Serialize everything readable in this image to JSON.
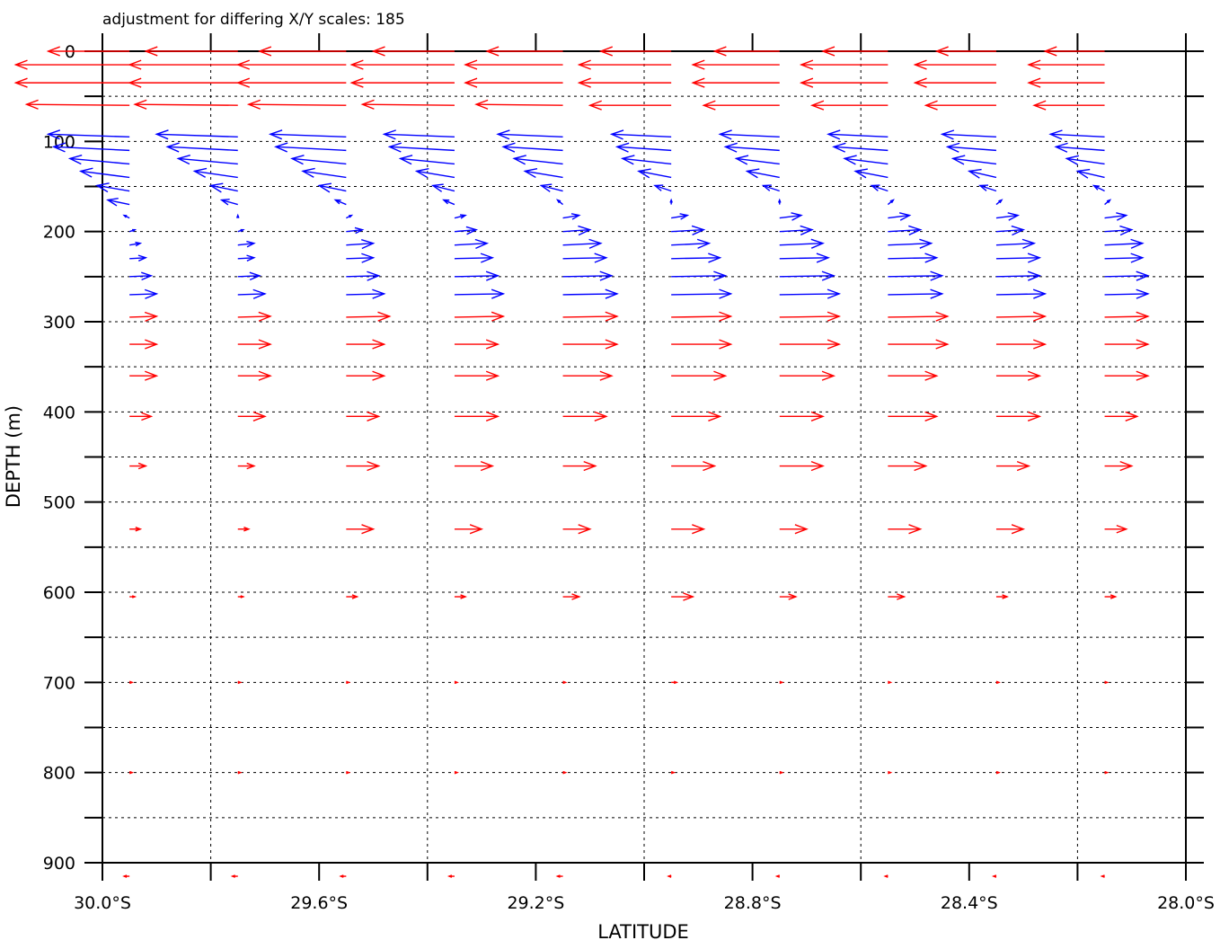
{
  "chart_data": {
    "type": "vector",
    "title": "adjustment for differing X/Y scales: 185",
    "xlabel": "LATITUDE",
    "ylabel": "DEPTH (m)",
    "xlim": [
      -30.0,
      -28.0
    ],
    "ylim": [
      900,
      0
    ],
    "x_ticks": [
      {
        "value": -30.0,
        "label": "30.0°S"
      },
      {
        "value": -29.6,
        "label": "29.6°S"
      },
      {
        "value": -29.2,
        "label": "29.2°S"
      },
      {
        "value": -28.8,
        "label": "28.8°S"
      },
      {
        "value": -28.4,
        "label": "28.4°S"
      },
      {
        "value": -28.0,
        "label": "28.0°S"
      }
    ],
    "x_minor_ticks": [
      -29.8,
      -29.4,
      -29.0,
      -28.6,
      -28.2
    ],
    "y_ticks": [
      {
        "value": 0,
        "label": "0"
      },
      {
        "value": 100,
        "label": "100"
      },
      {
        "value": 200,
        "label": "200"
      },
      {
        "value": 300,
        "label": "300"
      },
      {
        "value": 400,
        "label": "400"
      },
      {
        "value": 500,
        "label": "500"
      },
      {
        "value": 600,
        "label": "600"
      },
      {
        "value": 700,
        "label": "700"
      },
      {
        "value": 800,
        "label": "800"
      },
      {
        "value": 900,
        "label": "900"
      }
    ],
    "y_minor_ticks": [
      50,
      150,
      250,
      350,
      450,
      550,
      650,
      750,
      850
    ],
    "grid": true,
    "origin_latitudes": [
      -29.95,
      -29.75,
      -29.55,
      -29.35,
      -29.15,
      -28.95,
      -28.75,
      -28.55,
      -28.35,
      -28.15
    ],
    "depths": [
      0,
      15,
      35,
      60,
      95,
      110,
      125,
      140,
      155,
      170,
      185,
      200,
      215,
      230,
      250,
      270,
      295,
      325,
      360,
      405,
      460,
      530,
      605,
      700,
      800,
      915
    ],
    "colors": {
      "surface_and_deep": "#ff0000",
      "intermediate": "#0000ff"
    },
    "u_vectors_deg_lat": [
      [
        -0.15,
        -0.17,
        -0.16,
        -0.15,
        -0.14,
        -0.13,
        -0.12,
        -0.12,
        -0.11,
        -0.11
      ],
      [
        -0.21,
        -0.2,
        -0.2,
        -0.19,
        -0.18,
        -0.17,
        -0.16,
        -0.16,
        -0.15,
        -0.14
      ],
      [
        -0.21,
        -0.2,
        -0.2,
        -0.19,
        -0.18,
        -0.17,
        -0.16,
        -0.16,
        -0.15,
        -0.14
      ],
      [
        -0.19,
        -0.19,
        -0.18,
        -0.17,
        -0.16,
        -0.15,
        -0.14,
        -0.14,
        -0.13,
        -0.13
      ],
      [
        -0.15,
        -0.15,
        -0.14,
        -0.13,
        -0.12,
        -0.11,
        -0.11,
        -0.11,
        -0.1,
        -0.1
      ],
      [
        -0.14,
        -0.13,
        -0.13,
        -0.12,
        -0.11,
        -0.1,
        -0.1,
        -0.1,
        -0.09,
        -0.09
      ],
      [
        -0.11,
        -0.11,
        -0.1,
        -0.1,
        -0.09,
        -0.09,
        -0.08,
        -0.08,
        -0.08,
        -0.07
      ],
      [
        -0.09,
        -0.08,
        -0.08,
        -0.07,
        -0.07,
        -0.06,
        -0.06,
        -0.06,
        -0.05,
        -0.05
      ],
      [
        -0.06,
        -0.05,
        -0.05,
        -0.04,
        -0.04,
        -0.03,
        -0.03,
        -0.03,
        -0.03,
        -0.02
      ],
      [
        -0.04,
        -0.03,
        -0.02,
        -0.02,
        -0.01,
        0.0,
        0.0,
        0.01,
        0.01,
        0.01
      ],
      [
        -0.01,
        0.0,
        0.01,
        0.02,
        0.03,
        0.03,
        0.04,
        0.04,
        0.04,
        0.04
      ],
      [
        0.01,
        0.01,
        0.03,
        0.04,
        0.05,
        0.06,
        0.06,
        0.06,
        0.05,
        0.05
      ],
      [
        0.02,
        0.03,
        0.05,
        0.06,
        0.07,
        0.07,
        0.08,
        0.08,
        0.07,
        0.07
      ],
      [
        0.03,
        0.03,
        0.05,
        0.07,
        0.08,
        0.09,
        0.09,
        0.09,
        0.08,
        0.07
      ],
      [
        0.04,
        0.04,
        0.06,
        0.08,
        0.09,
        0.1,
        0.1,
        0.1,
        0.08,
        0.08
      ],
      [
        0.05,
        0.05,
        0.07,
        0.09,
        0.1,
        0.11,
        0.11,
        0.1,
        0.09,
        0.08
      ],
      [
        0.05,
        0.06,
        0.08,
        0.09,
        0.1,
        0.11,
        0.11,
        0.11,
        0.09,
        0.08
      ],
      [
        0.05,
        0.06,
        0.07,
        0.08,
        0.1,
        0.11,
        0.11,
        0.11,
        0.09,
        0.08
      ],
      [
        0.05,
        0.06,
        0.07,
        0.08,
        0.09,
        0.1,
        0.1,
        0.09,
        0.08,
        0.08
      ],
      [
        0.04,
        0.05,
        0.06,
        0.08,
        0.08,
        0.09,
        0.08,
        0.09,
        0.08,
        0.06
      ],
      [
        0.03,
        0.03,
        0.06,
        0.07,
        0.06,
        0.08,
        0.08,
        0.07,
        0.06,
        0.05
      ],
      [
        0.02,
        0.02,
        0.05,
        0.05,
        0.05,
        0.06,
        0.05,
        0.06,
        0.05,
        0.04
      ],
      [
        0.01,
        0.01,
        0.02,
        0.02,
        0.03,
        0.04,
        0.03,
        0.03,
        0.02,
        0.02
      ],
      [
        0.005,
        0.005,
        0.005,
        0.005,
        0.005,
        0.01,
        0.005,
        0.005,
        0.005,
        0.005
      ],
      [
        0.005,
        0.005,
        0.005,
        0.005,
        0.005,
        0.005,
        0.005,
        0.005,
        0.005,
        0.005
      ],
      [
        -0.01,
        -0.01,
        -0.01,
        -0.01,
        -0.01,
        -0.005,
        -0.005,
        -0.005,
        -0.005,
        -0.005
      ]
    ],
    "w_vectors_m": [
      [
        0,
        0,
        0,
        0,
        0,
        0,
        0,
        0,
        0,
        0
      ],
      [
        0,
        0,
        0,
        0,
        0,
        0,
        0,
        0,
        0,
        0
      ],
      [
        0,
        0,
        0,
        0,
        0,
        0,
        0,
        0,
        0,
        0
      ],
      [
        -1,
        -1,
        -1,
        -1,
        -1,
        0,
        0,
        0,
        0,
        0
      ],
      [
        -3,
        -3,
        -3,
        -3,
        -3,
        -3,
        -3,
        -3,
        -3,
        -3
      ],
      [
        -4,
        -4,
        -4,
        -4,
        -4,
        -4,
        -4,
        -4,
        -4,
        -4
      ],
      [
        -6,
        -6,
        -6,
        -6,
        -6,
        -6,
        -6,
        -6,
        -6,
        -6
      ],
      [
        -7,
        -7,
        -7,
        -7,
        -7,
        -7,
        -7,
        -7,
        -7,
        -7
      ],
      [
        -6,
        -6,
        -6,
        -6,
        -6,
        -6,
        -6,
        -6,
        -6,
        -6
      ],
      [
        -5,
        -5,
        -5,
        -5,
        -5,
        -5,
        -5,
        -5,
        -5,
        -5
      ],
      [
        -3,
        -3,
        -3,
        -3,
        -3,
        -3,
        -3,
        -3,
        -3,
        -3
      ],
      [
        -2,
        -2,
        -2,
        -2,
        -2,
        -2,
        -2,
        -2,
        -2,
        -2
      ],
      [
        -2,
        -2,
        -2,
        -2,
        -2,
        -2,
        -2,
        -2,
        -2,
        -2
      ],
      [
        -1,
        -1,
        -1,
        -1,
        -1,
        -1,
        -1,
        -1,
        -1,
        -1
      ],
      [
        -1,
        -1,
        -1,
        -1,
        -1,
        -1,
        -1,
        -1,
        -1,
        -1
      ],
      [
        -1,
        -1,
        -1,
        -1,
        -1,
        -1,
        -1,
        -1,
        -1,
        -1
      ],
      [
        -1,
        -1,
        -1,
        -1,
        -1,
        -1,
        -1,
        -1,
        -1,
        -1
      ],
      [
        0,
        0,
        0,
        0,
        0,
        0,
        0,
        0,
        0,
        0
      ],
      [
        0,
        0,
        0,
        0,
        0,
        0,
        0,
        0,
        0,
        0
      ],
      [
        0,
        0,
        0,
        0,
        0,
        0,
        0,
        0,
        0,
        0
      ],
      [
        0,
        0,
        0,
        0,
        0,
        0,
        0,
        0,
        0,
        0
      ],
      [
        0,
        0,
        0,
        0,
        0,
        0,
        0,
        0,
        0,
        0
      ],
      [
        0,
        0,
        0,
        0,
        0,
        0,
        0,
        0,
        0,
        0
      ],
      [
        0,
        0,
        0,
        0,
        0,
        0,
        0,
        0,
        0,
        0
      ],
      [
        0,
        0,
        0,
        0,
        0,
        0,
        0,
        0,
        0,
        0
      ],
      [
        0,
        0,
        0,
        0,
        0,
        0,
        0,
        0,
        0,
        0
      ]
    ],
    "blue_depth_range": [
      95,
      270
    ]
  }
}
